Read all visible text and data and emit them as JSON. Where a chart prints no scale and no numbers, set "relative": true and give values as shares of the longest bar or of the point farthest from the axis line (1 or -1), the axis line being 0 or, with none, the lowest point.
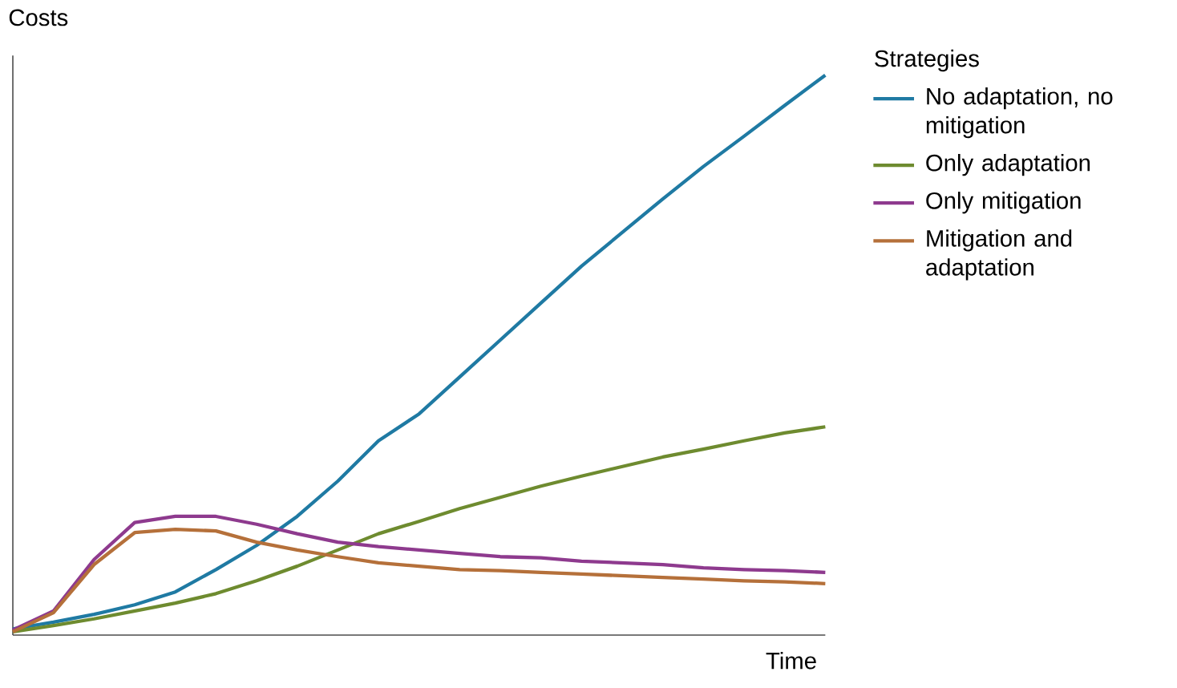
{
  "chart_data": {
    "type": "line",
    "relative": true,
    "xlabel": "Time",
    "ylabel": "Costs",
    "legend_title": "Strategies",
    "legend": "top right",
    "categories": [
      null,
      null,
      null,
      null,
      null,
      null,
      null,
      null,
      null,
      null,
      null,
      null,
      null,
      null,
      null,
      null,
      null,
      null,
      null,
      null,
      null
    ],
    "series": [
      {
        "name": "No adaptation, no mitigation",
        "color": "#1f7aa3",
        "values": [
          0.011,
          0.023,
          0.037,
          0.054,
          0.077,
          0.117,
          0.16,
          0.212,
          0.275,
          0.347,
          0.395,
          0.461,
          0.527,
          0.593,
          0.659,
          0.719,
          0.779,
          0.837,
          0.891,
          0.946,
          1
        ]
      },
      {
        "name": "Only adaptation",
        "color": "#6e8b2f",
        "values": [
          0.006,
          0.017,
          0.029,
          0.043,
          0.057,
          0.074,
          0.097,
          0.123,
          0.152,
          0.181,
          0.203,
          0.226,
          0.246,
          0.266,
          0.284,
          0.301,
          0.318,
          0.332,
          0.347,
          0.361,
          0.372
        ]
      },
      {
        "name": "Only mitigation",
        "color": "#8e3a8e",
        "values": [
          0.009,
          0.043,
          0.135,
          0.201,
          0.212,
          0.212,
          0.198,
          0.181,
          0.166,
          0.158,
          0.152,
          0.146,
          0.14,
          0.138,
          0.132,
          0.129,
          0.126,
          0.12,
          0.117,
          0.115,
          0.112
        ]
      },
      {
        "name": "Mitigation and adaptation",
        "color": "#b5703a",
        "values": [
          0.006,
          0.04,
          0.126,
          0.183,
          0.189,
          0.186,
          0.166,
          0.152,
          0.14,
          0.129,
          0.123,
          0.117,
          0.115,
          0.112,
          0.109,
          0.106,
          0.103,
          0.1,
          0.097,
          0.095,
          0.092
        ]
      }
    ]
  }
}
